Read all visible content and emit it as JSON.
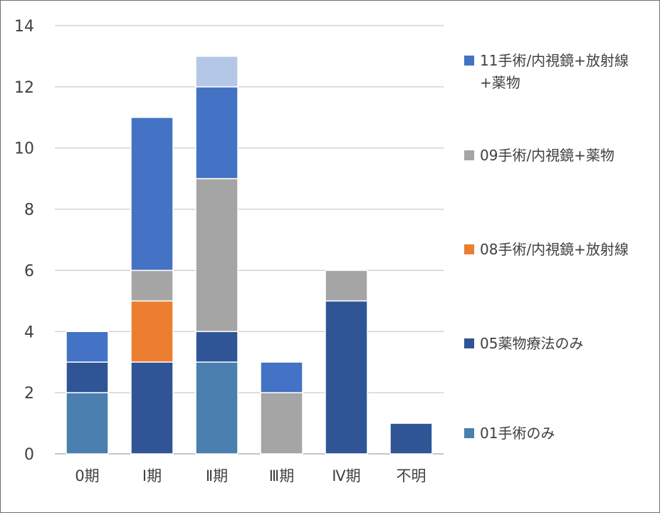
{
  "chart_data": {
    "type": "bar",
    "stacked": true,
    "categories": [
      "0期",
      "Ⅰ期",
      "Ⅱ期",
      "Ⅲ期",
      "Ⅳ期",
      "不明"
    ],
    "ylim": [
      0,
      14
    ],
    "yticks": [
      0,
      2,
      4,
      6,
      8,
      10,
      12,
      14
    ],
    "grid": true,
    "legend_position": "right",
    "series": [
      {
        "name": "01手術のみ",
        "color": "#4a7fb0",
        "values": [
          2,
          0,
          3,
          0,
          0,
          0
        ]
      },
      {
        "name": "05薬物療法のみ",
        "color": "#2f5597",
        "values": [
          1,
          3,
          1,
          0,
          5,
          1
        ]
      },
      {
        "name": "08手術/内視鏡+放射線",
        "color": "#ed7d31",
        "values": [
          0,
          2,
          0,
          0,
          0,
          0
        ]
      },
      {
        "name": "09手術/内視鏡+薬物",
        "color": "#a5a5a5",
        "values": [
          0,
          1,
          5,
          2,
          1,
          0
        ]
      },
      {
        "name": "11手術/内視鏡+放射線+薬物",
        "color": "#4472c4",
        "values": [
          1,
          5,
          3,
          1,
          0,
          0
        ]
      },
      {
        "name": "",
        "color": "#b4c7e7",
        "values": [
          0,
          0,
          1,
          0,
          0,
          0
        ]
      }
    ]
  }
}
